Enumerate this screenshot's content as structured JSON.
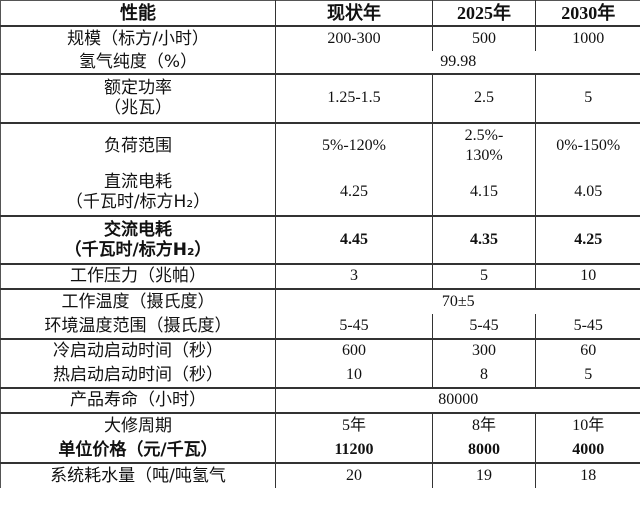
{
  "header": {
    "label": "性能",
    "cols": [
      "现状年",
      "2025年",
      "2030年"
    ]
  },
  "rows": [
    {
      "label": "规模（标方/小时）",
      "values": [
        "200-300",
        "500",
        "1000"
      ],
      "top": true,
      "h": 25
    },
    {
      "label": "氢气纯度（%）",
      "merged": "99.98",
      "h": 23
    },
    {
      "label": "额定功率\n（兆瓦）",
      "values": [
        "1.25-1.5",
        "2.5",
        "5"
      ],
      "top": true,
      "h": 49
    },
    {
      "label": "负荷范围",
      "values": [
        "5%-120%",
        "2.5%-\n130%",
        "0%-150%"
      ],
      "top": true,
      "h": 46
    },
    {
      "label": "直流电耗\n（千瓦时/标方H₂）",
      "values": [
        "4.25",
        "4.15",
        "4.05"
      ],
      "h": 47
    },
    {
      "label": "交流电耗\n（千瓦时/标方H₂）",
      "values": [
        "4.45",
        "4.35",
        "4.25"
      ],
      "top": true,
      "bold": true,
      "h": 48
    },
    {
      "label": "工作压力（兆帕）",
      "values": [
        "3",
        "5",
        "10"
      ],
      "top": true,
      "h": 25
    },
    {
      "label": "工作温度（摄氏度）",
      "merged": "70±5",
      "top": true,
      "h": 25
    },
    {
      "label": "环境温度范围（摄氏度）",
      "values": [
        "5-45",
        "5-45",
        "5-45"
      ],
      "h": 25
    },
    {
      "label": "冷启动启动时间（秒）",
      "values": [
        "600",
        "300",
        "60"
      ],
      "top": true,
      "h": 24
    },
    {
      "label": "热启动启动时间（秒）",
      "values": [
        "10",
        "8",
        "5"
      ],
      "h": 25
    },
    {
      "label": "产品寿命（小时）",
      "merged": "80000",
      "top": true,
      "h": 25
    },
    {
      "label": "大修周期",
      "values": [
        "5年",
        "8年",
        "10年"
      ],
      "top": true,
      "h": 25
    },
    {
      "label": "单位价格（元/千瓦）",
      "values": [
        "11200",
        "8000",
        "4000"
      ],
      "bold": true,
      "h": 25
    },
    {
      "label": "系统耗水量（吨/吨氢气",
      "values": [
        "20",
        "19",
        "18"
      ],
      "top": true,
      "h": 25
    }
  ]
}
